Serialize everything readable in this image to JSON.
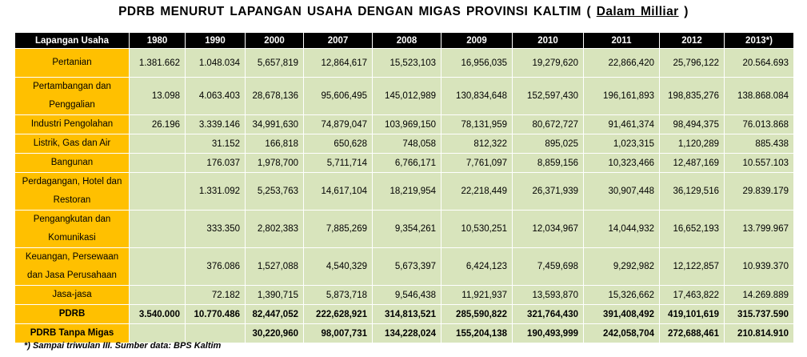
{
  "title": {
    "main": "PDRB  MENURUT LAPANGAN  USAHA DENGAN MIGAS PROVINSI  KALTIM ( ",
    "unit": "Dalam Milliar",
    "close": " )"
  },
  "table": {
    "headers": [
      "Lapangan Usaha",
      "1980",
      "1990",
      "2000",
      "2007",
      "2008",
      "2009",
      "2010",
      "2011",
      "2012",
      "2013*)"
    ],
    "rows": [
      {
        "label": "Pertanian",
        "values": [
          "1.381.662",
          "1.048.034",
          "5,657,819",
          "12,864,617",
          "15,523,103",
          "16,956,035",
          "19,279,620",
          "22,866,420",
          "25,796,122",
          "20.564.693"
        ]
      },
      {
        "label": "Pertambangan dan Penggalian",
        "values": [
          "13.098",
          "4.063.403",
          "28,678,136",
          "95,606,495",
          "145,012,989",
          "130,834,648",
          "152,597,430",
          "196,161,893",
          "198,835,276",
          "138.868.084"
        ]
      },
      {
        "label": "Industri Pengolahan",
        "values": [
          "26.196",
          "3.339.146",
          "34,991,630",
          "74,879,047",
          "103,969,150",
          "78,131,959",
          "80,672,727",
          "91,461,374",
          "98,494,375",
          "76.013.868"
        ]
      },
      {
        "label": "Listrik, Gas dan Air",
        "values": [
          "",
          "31.152",
          "166,818",
          "650,628",
          "748,058",
          "812,322",
          "895,025",
          "1,023,315",
          "1,120,289",
          "885.438"
        ]
      },
      {
        "label": "Bangunan",
        "values": [
          "",
          "176.037",
          "1,978,700",
          "5,711,714",
          "6,766,171",
          "7,761,097",
          "8,859,156",
          "10,323,466",
          "12,487,169",
          "10.557.103"
        ]
      },
      {
        "label": "Perdagangan, Hotel dan Restoran",
        "values": [
          "",
          "1.331.092",
          "5,253,763",
          "14,617,104",
          "18,219,954",
          "22,218,449",
          "26,371,939",
          "30,907,448",
          "36,129,516",
          "29.839.179"
        ]
      },
      {
        "label": "Pengangkutan dan Komunikasi",
        "values": [
          "",
          "333.350",
          "2,802,383",
          "7,885,269",
          "9,354,261",
          "10,530,251",
          "12,034,967",
          "14,044,932",
          "16,652,193",
          "13.799.967"
        ]
      },
      {
        "label": "Keuangan, Persewaan dan Jasa Perusahaan",
        "values": [
          "",
          "376.086",
          "1,527,088",
          "4,540,329",
          "5,673,397",
          "6,424,123",
          "7,459,698",
          "9,292,982",
          "12,122,857",
          "10.939.370"
        ]
      },
      {
        "label": "Jasa-jasa",
        "values": [
          "",
          "72.182",
          "1,390,715",
          "5,873,718",
          "9,546,438",
          "11,921,937",
          "13,593,870",
          "15,326,662",
          "17,463,822",
          "14.269.889"
        ]
      },
      {
        "label": "PDRB",
        "values": [
          "3.540.000",
          "10.770.486",
          "82,447,052",
          "222,628,921",
          "314,813,521",
          "285,590,822",
          "321,764,430",
          "391,408,492",
          "419,101,619",
          "315.737.590"
        ]
      },
      {
        "label": "PDRB Tanpa Migas",
        "values": [
          "",
          "",
          "30,220,960",
          "98,007,731",
          "134,228,024",
          "155,204,138",
          "190,493,999",
          "242,058,704",
          "272,688,461",
          "210.814.910"
        ]
      }
    ]
  },
  "footnote": "*) Sampai triwulan III.  Sumber data: BPS Kaltim"
}
